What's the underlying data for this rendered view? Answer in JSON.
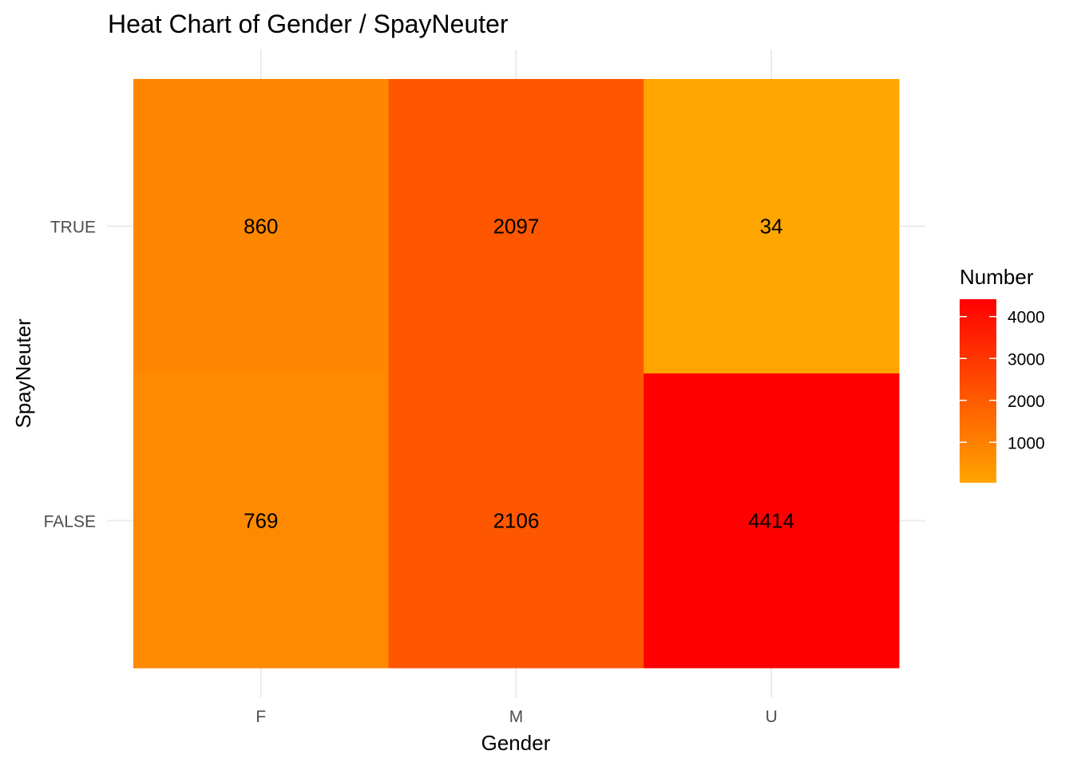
{
  "chart_data": {
    "type": "heatmap",
    "title": "Heat Chart of Gender / SpayNeuter",
    "xlabel": "Gender",
    "ylabel": "SpayNeuter",
    "x_categories": [
      "F",
      "M",
      "U"
    ],
    "y_categories": [
      "FALSE",
      "TRUE"
    ],
    "cells": [
      {
        "x": "F",
        "y": "TRUE",
        "value": 860,
        "label": "860"
      },
      {
        "x": "M",
        "y": "TRUE",
        "value": 2097,
        "label": "2097"
      },
      {
        "x": "U",
        "y": "TRUE",
        "value": 34,
        "label": "34"
      },
      {
        "x": "F",
        "y": "FALSE",
        "value": 769,
        "label": "769"
      },
      {
        "x": "M",
        "y": "FALSE",
        "value": 2106,
        "label": "2106"
      },
      {
        "x": "U",
        "y": "FALSE",
        "value": 4414,
        "label": "4414"
      }
    ],
    "legend": {
      "title": "Number",
      "position": "right",
      "ticks": [
        {
          "value": 1000,
          "label": "1000"
        },
        {
          "value": 2000,
          "label": "2000"
        },
        {
          "value": 3000,
          "label": "3000"
        },
        {
          "value": 4000,
          "label": "4000"
        }
      ],
      "low_color": "#FFA500",
      "high_color": "#FF0000",
      "min": 34,
      "max": 4414
    },
    "grid": true
  }
}
